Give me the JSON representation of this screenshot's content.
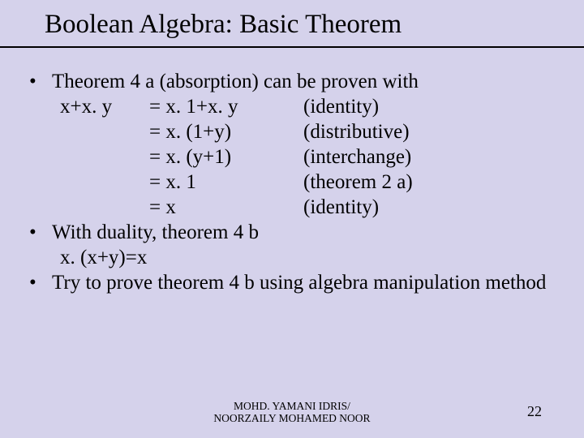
{
  "colors": {
    "background": "#d5d2eb",
    "text": "#000000",
    "underline": "#000000"
  },
  "typography": {
    "family": "Times New Roman",
    "title_fontsize": 33,
    "body_fontsize": 25,
    "footer_fontsize": 13.5,
    "pagenum_fontsize": 18
  },
  "title": "Boolean Algebra: Basic Theorem",
  "bullets": [
    {
      "lead": "Theorem 4 a (absorption) can be proven with",
      "proof": [
        {
          "lhs": "x+x. y",
          "rhs": "= x. 1+x. y",
          "reason": "(identity)"
        },
        {
          "lhs": "",
          "rhs": "= x. (1+y)",
          "reason": "(distributive)"
        },
        {
          "lhs": "",
          "rhs": "= x. (y+1)",
          "reason": "(interchange)"
        },
        {
          "lhs": "",
          "rhs": "= x. 1",
          "reason": "(theorem 2 a)"
        },
        {
          "lhs": "",
          "rhs": "= x",
          "reason": "(identity)"
        }
      ]
    },
    {
      "lead": "With duality, theorem 4 b",
      "indent": "x. (x+y)=x"
    },
    {
      "lead": "Try to prove theorem 4 b using algebra manipulation method"
    }
  ],
  "footer": {
    "line1": "MOHD. YAMANI IDRIS/",
    "line2": "NOORZAILY MOHAMED NOOR"
  },
  "page_number": "22"
}
